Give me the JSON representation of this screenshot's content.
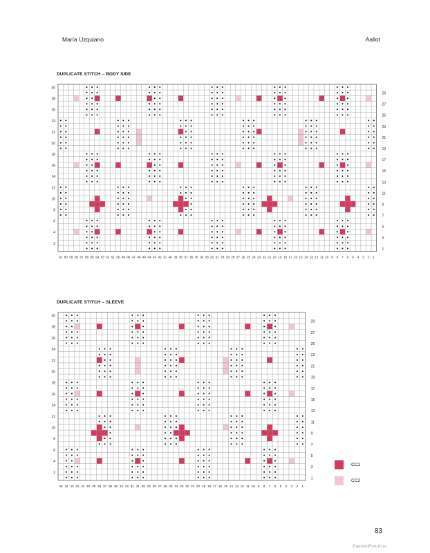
{
  "header": {
    "author": "María Uzquiano",
    "pattern": "Aallot"
  },
  "colors": {
    "cc1": "#d7385e",
    "cc2": "#f1c5d3",
    "grid": "#9a9a9a",
    "stitch": "#1a1a1a"
  },
  "chart_body": {
    "title": "DUPLICATE STITCH – BODY SIDE",
    "columns": 61,
    "rows": 30,
    "left_row_labels": [
      "30",
      "28",
      "26",
      "24",
      "22",
      "20",
      "18",
      "16",
      "14",
      "12",
      "10",
      "8",
      "6",
      "4",
      "2"
    ],
    "right_row_labels": [
      "29",
      "27",
      "25",
      "23",
      "21",
      "19",
      "17",
      "15",
      "13",
      "11",
      "9",
      "7",
      "5",
      "3",
      "1"
    ]
  },
  "chart_sleeve": {
    "title": "DUPLICATE STITCH – SLEEVE",
    "columns": 45,
    "rows": 30,
    "left_row_labels": [
      "30",
      "28",
      "26",
      "24",
      "22",
      "20",
      "18",
      "16",
      "14",
      "12",
      "10",
      "8",
      "6",
      "4",
      "2"
    ],
    "right_row_labels": [
      "29",
      "27",
      "25",
      "23",
      "21",
      "19",
      "17",
      "15",
      "13",
      "11",
      "9",
      "7",
      "5",
      "3",
      "1"
    ]
  },
  "legend": [
    {
      "key": "cc1",
      "label": "CC1"
    },
    {
      "key": "cc2",
      "label": "CC2"
    }
  ],
  "page_number": "83",
  "footer": "PassionForum.ru"
}
